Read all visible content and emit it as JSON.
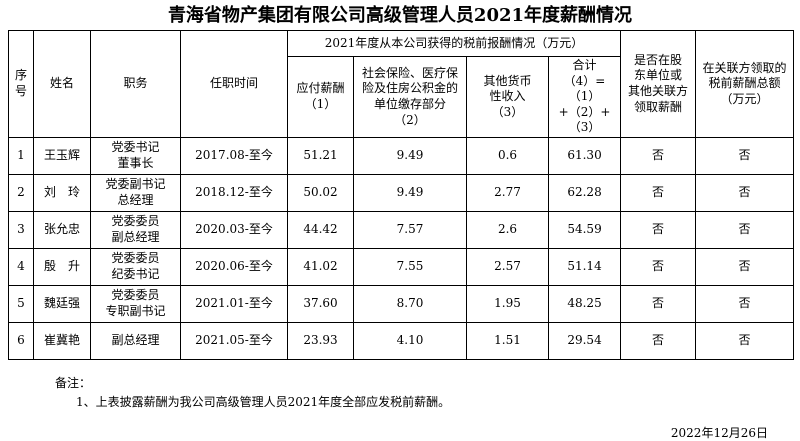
{
  "title": "青海省物产集团有限公司高级管理人员2021年度薪酬情况",
  "table": {
    "headers": {
      "seq": "序\n号",
      "name": "姓名",
      "position": "职务",
      "tenure": "任职时间",
      "group": "2021年度从本公司获得的税前报酬情况（万元）",
      "payable": "应付薪酬\n（1）",
      "insurance": "社会保险、医疗保\n险及住房公积金的\n单位缴存部分\n（2）",
      "other_income": "其他货币\n性收入\n（3）",
      "total": "合计\n（4）=（1）\n+（2）+\n（3）",
      "shareholder": "是否在股\n东单位或\n其他关联方\n领取薪酬",
      "related_party": "在关联方领取的\n税前薪酬总额\n（万元）"
    },
    "column_keys": [
      "seq",
      "name",
      "position",
      "tenure",
      "payable",
      "insurance",
      "other-income",
      "total",
      "shareholder",
      "related-party"
    ],
    "rows": [
      [
        "1",
        "王玉辉",
        "党委书记\n董事长",
        "2017.08-至今",
        "51.21",
        "9.49",
        "0.6",
        "61.30",
        "否",
        "否"
      ],
      [
        "2",
        "刘　玲",
        "党委副书记\n总经理",
        "2018.12-至今",
        "50.02",
        "9.49",
        "2.77",
        "62.28",
        "否",
        "否"
      ],
      [
        "3",
        "张允忠",
        "党委委员\n副总经理",
        "2020.03-至今",
        "44.42",
        "7.57",
        "2.6",
        "54.59",
        "否",
        "否"
      ],
      [
        "4",
        "殷　升",
        "党委委员\n纪委书记",
        "2020.06-至今",
        "41.02",
        "7.55",
        "2.57",
        "51.14",
        "否",
        "否"
      ],
      [
        "5",
        "魏廷强",
        "党委委员\n专职副书记",
        "2021.01-至今",
        "37.60",
        "8.70",
        "1.95",
        "48.25",
        "否",
        "否"
      ],
      [
        "6",
        "崔冀艳",
        "副总经理",
        "2021.05-至今",
        "23.93",
        "4.10",
        "1.51",
        "29.54",
        "否",
        "否"
      ]
    ]
  },
  "footer": {
    "notes_label": "备注：",
    "note1": "1、上表披露薪酬为我公司高级管理人员2021年度全部应发税前薪酬。",
    "date": "2022年12月26日"
  }
}
